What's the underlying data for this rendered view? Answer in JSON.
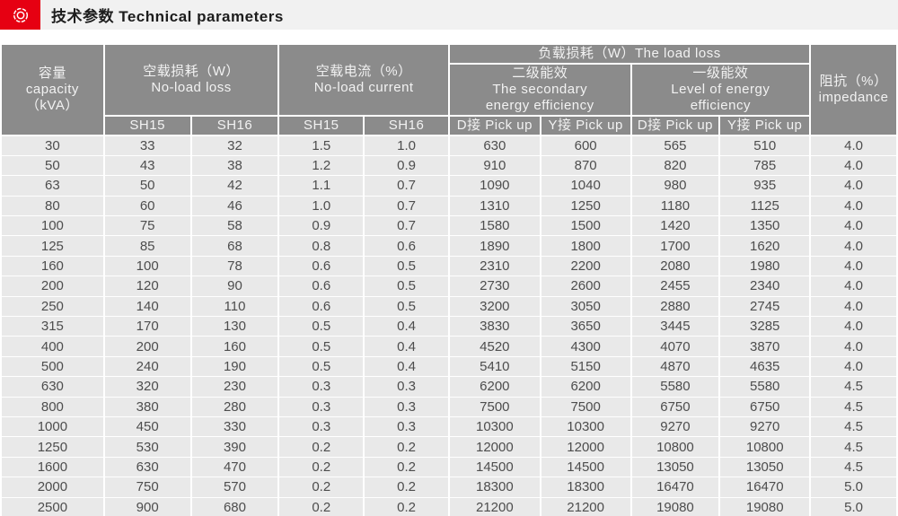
{
  "page": {
    "title": "技术参数 Technical parameters"
  },
  "icon": {
    "name": "brand-emblem",
    "shape": "concentric-circles"
  },
  "colors": {
    "accent_red": "#e60012",
    "header_bg": "#8b8b8b",
    "header_text": "#f2f2f2",
    "row_bg": "#e9e9e9",
    "row_text": "#4d4d4d",
    "grid_line": "#ffffff",
    "titlebar_bg": "#f1f1f1"
  },
  "table": {
    "capacity_header": {
      "zh": "容量",
      "en": "capacity",
      "unit": "（kVA）"
    },
    "no_load_loss_header": {
      "zh": "空载损耗（W）",
      "en": "No-load loss"
    },
    "no_load_current_header": {
      "zh": "空载电流（%）",
      "en": "No-load current"
    },
    "load_loss_header": {
      "label": "负载损耗（W）The load loss"
    },
    "secondary_header": {
      "zh": "二级能效",
      "en_line1": "The secondary",
      "en_line2": "energy efficiency"
    },
    "grade1_header": {
      "zh": "一级能效",
      "en_line1": "Level of energy",
      "en_line2": "efficiency"
    },
    "impedance_header": {
      "zh": "阻抗（%）",
      "en": "impedance"
    },
    "sub_headers": {
      "sh15": "SH15",
      "sh16": "SH16",
      "d_pickup": "D接 Pick up",
      "y_pickup": "Y接 Pick up"
    },
    "rows": [
      [
        "30",
        "33",
        "32",
        "1.5",
        "1.0",
        "630",
        "600",
        "565",
        "510",
        "4.0"
      ],
      [
        "50",
        "43",
        "38",
        "1.2",
        "0.9",
        "910",
        "870",
        "820",
        "785",
        "4.0"
      ],
      [
        "63",
        "50",
        "42",
        "1.1",
        "0.7",
        "1090",
        "1040",
        "980",
        "935",
        "4.0"
      ],
      [
        "80",
        "60",
        "46",
        "1.0",
        "0.7",
        "1310",
        "1250",
        "1180",
        "1125",
        "4.0"
      ],
      [
        "100",
        "75",
        "58",
        "0.9",
        "0.7",
        "1580",
        "1500",
        "1420",
        "1350",
        "4.0"
      ],
      [
        "125",
        "85",
        "68",
        "0.8",
        "0.6",
        "1890",
        "1800",
        "1700",
        "1620",
        "4.0"
      ],
      [
        "160",
        "100",
        "78",
        "0.6",
        "0.5",
        "2310",
        "2200",
        "2080",
        "1980",
        "4.0"
      ],
      [
        "200",
        "120",
        "90",
        "0.6",
        "0.5",
        "2730",
        "2600",
        "2455",
        "2340",
        "4.0"
      ],
      [
        "250",
        "140",
        "110",
        "0.6",
        "0.5",
        "3200",
        "3050",
        "2880",
        "2745",
        "4.0"
      ],
      [
        "315",
        "170",
        "130",
        "0.5",
        "0.4",
        "3830",
        "3650",
        "3445",
        "3285",
        "4.0"
      ],
      [
        "400",
        "200",
        "160",
        "0.5",
        "0.4",
        "4520",
        "4300",
        "4070",
        "3870",
        "4.0"
      ],
      [
        "500",
        "240",
        "190",
        "0.5",
        "0.4",
        "5410",
        "5150",
        "4870",
        "4635",
        "4.0"
      ],
      [
        "630",
        "320",
        "230",
        "0.3",
        "0.3",
        "6200",
        "6200",
        "5580",
        "5580",
        "4.5"
      ],
      [
        "800",
        "380",
        "280",
        "0.3",
        "0.3",
        "7500",
        "7500",
        "6750",
        "6750",
        "4.5"
      ],
      [
        "1000",
        "450",
        "330",
        "0.3",
        "0.3",
        "10300",
        "10300",
        "9270",
        "9270",
        "4.5"
      ],
      [
        "1250",
        "530",
        "390",
        "0.2",
        "0.2",
        "12000",
        "12000",
        "10800",
        "10800",
        "4.5"
      ],
      [
        "1600",
        "630",
        "470",
        "0.2",
        "0.2",
        "14500",
        "14500",
        "13050",
        "13050",
        "4.5"
      ],
      [
        "2000",
        "750",
        "570",
        "0.2",
        "0.2",
        "18300",
        "18300",
        "16470",
        "16470",
        "5.0"
      ],
      [
        "2500",
        "900",
        "680",
        "0.2",
        "0.2",
        "21200",
        "21200",
        "19080",
        "19080",
        "5.0"
      ]
    ]
  }
}
